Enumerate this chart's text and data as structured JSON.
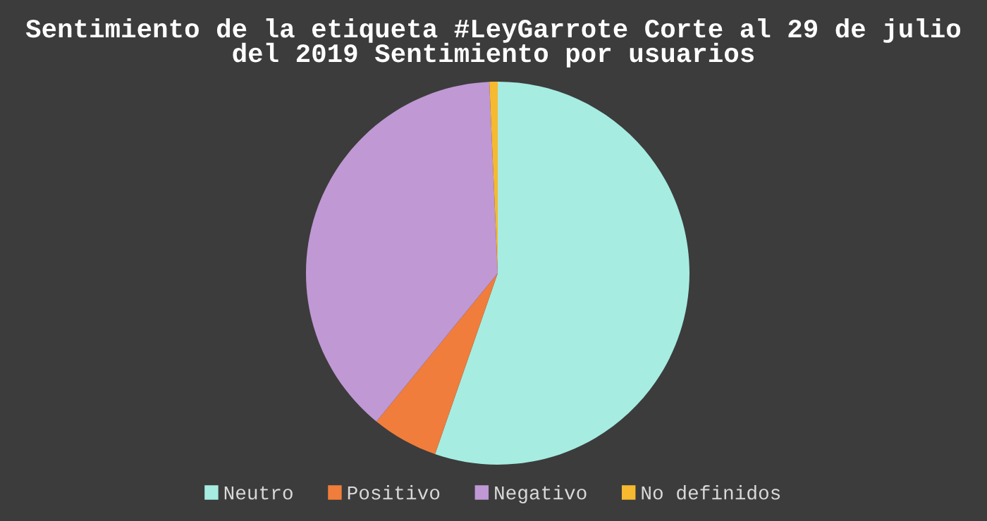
{
  "chart_data": {
    "type": "pie",
    "title": "Sentimiento de la etiqueta #LeyGarrote Corte al 29 de julio del 2019 Sentimiento por usuarios",
    "categories": [
      "Neutro",
      "Positivo",
      "Negativo",
      "No definidos"
    ],
    "values": [
      55.3,
      5.6,
      38.4,
      0.7
    ],
    "colors": [
      "#a6ece1",
      "#f07d3b",
      "#bf98d4",
      "#f6b92f"
    ],
    "legend": "bottom"
  }
}
